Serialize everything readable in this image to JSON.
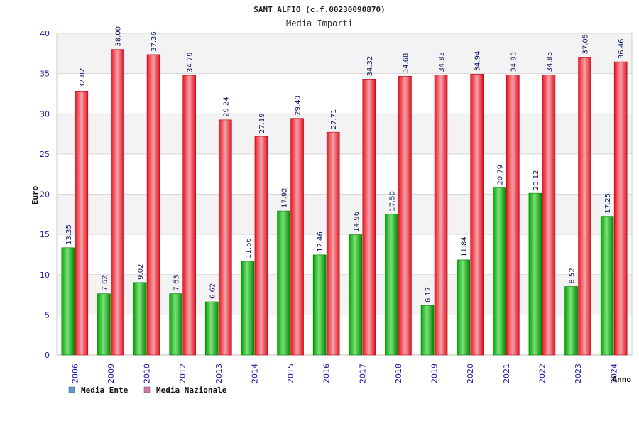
{
  "chart_data": {
    "type": "bar",
    "title": "SANT ALFIO (c.f.00230090870)",
    "subtitle": "Media Importi",
    "xlabel": "Anno",
    "ylabel": "Euro",
    "ylim": [
      0,
      40
    ],
    "yticks": [
      0,
      5,
      10,
      15,
      20,
      25,
      30,
      35,
      40
    ],
    "grid": true,
    "legend_position": "bottom-left",
    "categories": [
      "2006",
      "2009",
      "2010",
      "2012",
      "2013",
      "2014",
      "2015",
      "2016",
      "2017",
      "2018",
      "2019",
      "2020",
      "2021",
      "2022",
      "2023",
      "2024"
    ],
    "series": [
      {
        "name": "Media Ente",
        "bar_color": "#00a000",
        "legend_color": "#5b9bd5",
        "values": [
          13.35,
          7.62,
          9.02,
          7.63,
          6.62,
          11.66,
          17.92,
          12.46,
          14.96,
          17.5,
          6.17,
          11.84,
          20.79,
          20.12,
          8.52,
          17.25
        ],
        "labels": [
          "13.35",
          "7.62",
          "9.02",
          "7.63",
          "6.62",
          "11.66",
          "17.92",
          "12.46",
          "14.96",
          "17.50",
          "6.17",
          "11.84",
          "20.79",
          "20.12",
          "8.52",
          "17.25"
        ]
      },
      {
        "name": "Media Nazionale",
        "bar_color": "#e8101e",
        "legend_color": "#d977a8",
        "values": [
          32.82,
          38.0,
          37.36,
          34.79,
          29.24,
          27.19,
          29.43,
          27.71,
          34.32,
          34.68,
          34.83,
          34.94,
          34.83,
          34.85,
          37.05,
          36.46
        ],
        "labels": [
          "32.82",
          "38.00",
          "37.36",
          "34.79",
          "29.24",
          "27.19",
          "29.43",
          "27.71",
          "34.32",
          "34.68",
          "34.83",
          "34.94",
          "34.83",
          "34.85",
          "37.05",
          "36.46"
        ]
      }
    ]
  }
}
